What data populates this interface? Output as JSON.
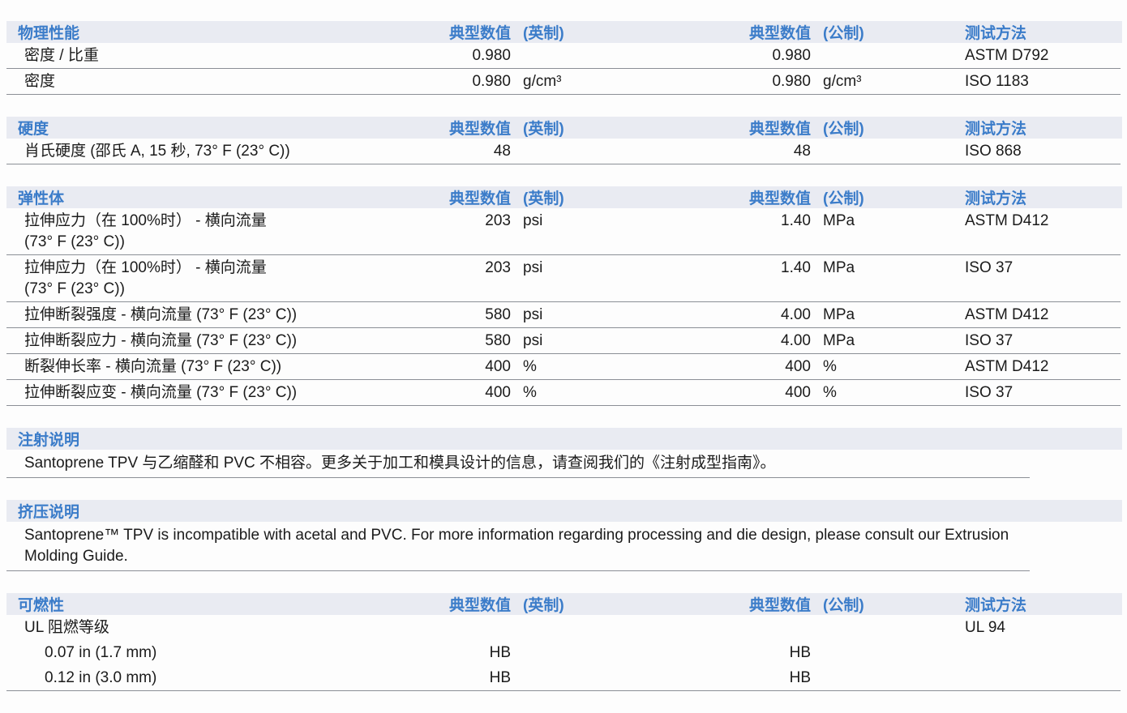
{
  "colors": {
    "accent_blue": "#3b7cc9",
    "band_background": "#e9ebf2",
    "row_line": "#8b8f96",
    "body_text": "#1b1b1b"
  },
  "columns": {
    "value_label": "典型数值",
    "imperial": "(英制)",
    "metric": "(公制)",
    "method": "测试方法"
  },
  "physical": {
    "title": "物理性能",
    "rows": [
      {
        "property": "密度 / 比重",
        "value_imperial": "0.980",
        "unit_imperial": "",
        "value_metric": "0.980",
        "unit_metric": "",
        "method": "ASTM D792"
      },
      {
        "property": "密度",
        "value_imperial": "0.980",
        "unit_imperial": "g/cm³",
        "value_metric": "0.980",
        "unit_metric": "g/cm³",
        "method": "ISO 1183"
      }
    ]
  },
  "hardness": {
    "title": "硬度",
    "rows": [
      {
        "property": "肖氏硬度 (邵氏 A, 15 秒, 73° F (23° C))",
        "value_imperial": "48",
        "unit_imperial": "",
        "value_metric": "48",
        "unit_metric": "",
        "method": "ISO 868"
      }
    ]
  },
  "elastomer": {
    "title": "弹性体",
    "rows": [
      {
        "property": "拉伸应力（在 100%时） - 横向流量",
        "property_line2": "(73° F (23° C))",
        "value_imperial": "203",
        "unit_imperial": "psi",
        "value_metric": "1.40",
        "unit_metric": "MPa",
        "method": "ASTM D412"
      },
      {
        "property": "拉伸应力（在 100%时） - 横向流量",
        "property_line2": "(73° F (23° C))",
        "value_imperial": "203",
        "unit_imperial": "psi",
        "value_metric": "1.40",
        "unit_metric": "MPa",
        "method": "ISO 37"
      },
      {
        "property": "拉伸断裂强度 - 横向流量 (73° F (23° C))",
        "value_imperial": "580",
        "unit_imperial": "psi",
        "value_metric": "4.00",
        "unit_metric": "MPa",
        "method": "ASTM D412"
      },
      {
        "property": "拉伸断裂应力 - 横向流量 (73° F (23° C))",
        "value_imperial": "580",
        "unit_imperial": "psi",
        "value_metric": "4.00",
        "unit_metric": "MPa",
        "method": "ISO 37"
      },
      {
        "property": "断裂伸长率 - 横向流量 (73° F (23° C))",
        "value_imperial": "400",
        "unit_imperial": "%",
        "value_metric": "400",
        "unit_metric": "%",
        "method": "ASTM D412"
      },
      {
        "property": "拉伸断裂应变 - 横向流量 (73° F (23° C))",
        "value_imperial": "400",
        "unit_imperial": "%",
        "value_metric": "400",
        "unit_metric": "%",
        "method": "ISO 37"
      }
    ]
  },
  "injection": {
    "title": "注射说明",
    "text": "Santoprene TPV 与乙缩醛和 PVC 不相容。更多关于加工和模具设计的信息，请查阅我们的《注射成型指南》。"
  },
  "extrusion": {
    "title": "挤压说明",
    "text": "Santoprene™ TPV is incompatible with acetal and PVC. For more information regarding processing and die design, please consult our Extrusion Molding Guide."
  },
  "flammability": {
    "title": "可燃性",
    "rows": [
      {
        "property": "UL 阻燃等级",
        "value_imperial": "",
        "unit_imperial": "",
        "value_metric": "",
        "unit_metric": "",
        "method": "UL 94"
      },
      {
        "property": "0.07 in (1.7 mm)",
        "value_imperial": "HB",
        "unit_imperial": "",
        "value_metric": "HB",
        "unit_metric": "",
        "method": ""
      },
      {
        "property": "0.12 in (3.0 mm)",
        "value_imperial": "HB",
        "unit_imperial": "",
        "value_metric": "HB",
        "unit_metric": "",
        "method": ""
      }
    ]
  }
}
